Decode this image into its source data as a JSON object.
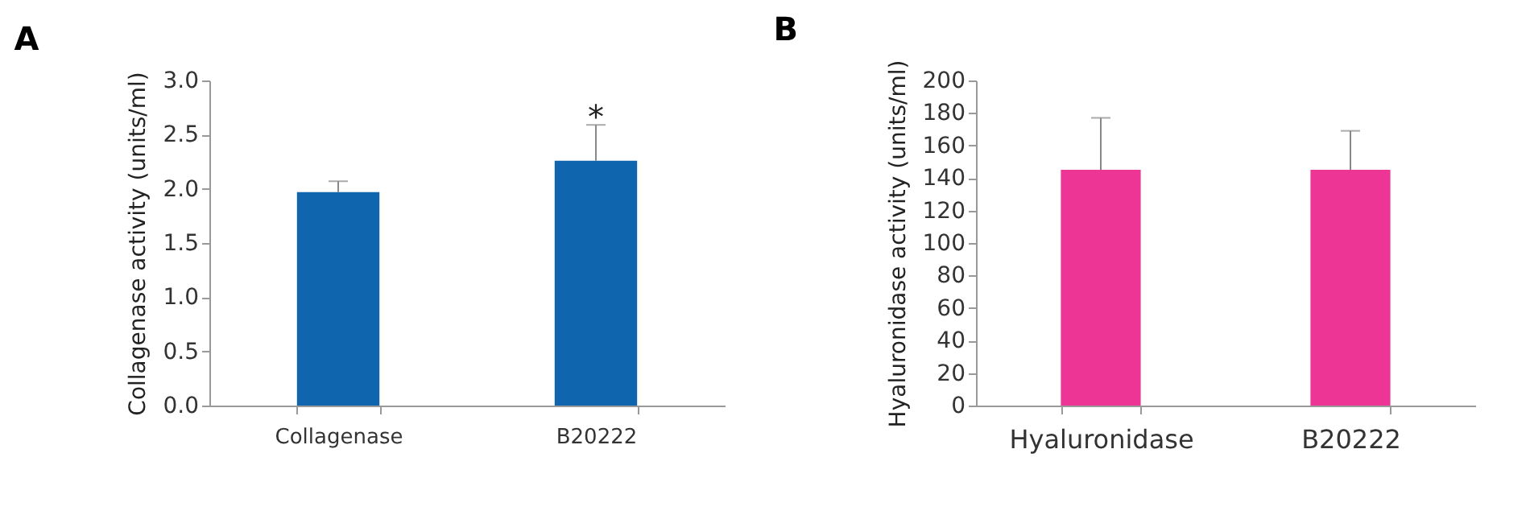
{
  "chart_data": [
    {
      "type": "bar",
      "title": "A",
      "ylabel": "Collagenase activity (units/ml)",
      "categories": [
        "Collagenase",
        "B20222"
      ],
      "values": [
        1.97,
        2.26
      ],
      "errors": [
        [
          1.97,
          2.07
        ],
        [
          2.26,
          2.59
        ]
      ],
      "color": "#1066ae",
      "ylim": [
        0,
        3
      ],
      "yticks": [
        {
          "value": 0,
          "label": "0.0"
        },
        0.5,
        {
          "value": 1,
          "label": "1.0"
        },
        1.5,
        {
          "value": 2,
          "label": "2.0"
        },
        2.5,
        {
          "value": 3,
          "label": "3.0"
        }
      ],
      "grid": false,
      "annotations": [
        {
          "text": "*",
          "x": "B20222",
          "y": 2.59
        }
      ]
    },
    {
      "type": "bar",
      "title": "B",
      "ylabel": "Hyaluronidase activity (units/ml)",
      "categories": [
        "Hyaluronidase",
        "B20222"
      ],
      "values": [
        145,
        145
      ],
      "errors": [
        [
          145,
          177
        ],
        [
          145,
          169
        ]
      ],
      "color": "#ec3595",
      "ylim": [
        0,
        200
      ],
      "yticks": [
        0,
        20,
        40,
        60,
        80,
        100,
        120,
        140,
        160,
        180,
        200
      ],
      "grid": false
    }
  ]
}
